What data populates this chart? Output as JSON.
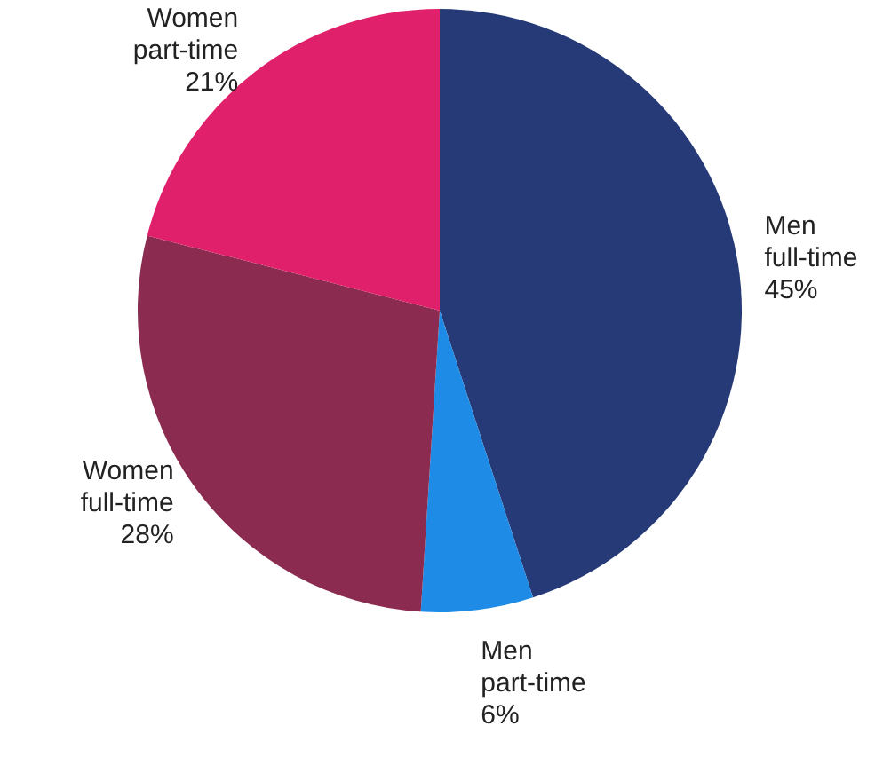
{
  "chart_data": {
    "type": "pie",
    "categories": [
      "Men full-time",
      "Men part-time",
      "Women full-time",
      "Women part-time"
    ],
    "values": [
      45,
      6,
      28,
      21
    ],
    "value_labels": [
      "45%",
      "6%",
      "28%",
      "21%"
    ],
    "colors": [
      "#263a78",
      "#1e8ce6",
      "#8a2b4f",
      "#e0206a"
    ]
  }
}
